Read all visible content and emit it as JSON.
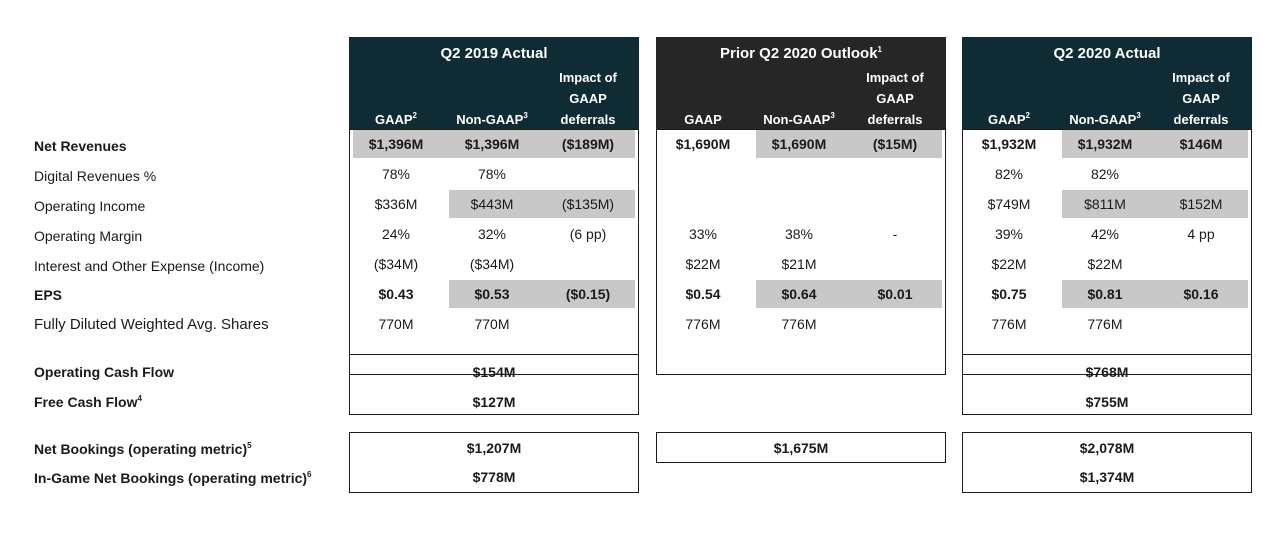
{
  "row_labels": {
    "net_revenues": "Net Revenues",
    "digital_revenues": "Digital Revenues %",
    "operating_income": "Operating Income",
    "operating_margin": "Operating Margin",
    "interest_expense": "Interest and Other Expense (Income)",
    "eps": "EPS",
    "shares": "Fully Diluted Weighted Avg. Shares",
    "operating_cash_flow": "Operating Cash Flow",
    "free_cash_flow": "Free Cash Flow",
    "free_cash_flow_note": "4",
    "net_bookings": "Net Bookings (operating metric)",
    "net_bookings_note": "5",
    "ingame_bookings": "In-Game Net Bookings (operating metric)",
    "ingame_bookings_note": "6"
  },
  "panels": [
    {
      "title": "Q2 2019 Actual",
      "title_note": "",
      "header_color": "#0f2b34",
      "cols": [
        {
          "l1": "",
          "l2": "",
          "l3": "GAAP",
          "note": "2"
        },
        {
          "l1": "",
          "l2": "",
          "l3": "Non-GAAP",
          "note": "3"
        },
        {
          "l1": "Impact of",
          "l2": "GAAP",
          "l3": "deferrals",
          "note": ""
        }
      ],
      "rows": {
        "net_revenues": [
          "$1,396M",
          "$1,396M",
          "($189M)"
        ],
        "digital_revenues": [
          "78%",
          "78%",
          ""
        ],
        "operating_income": [
          "$336M",
          "$443M",
          "($135M)"
        ],
        "operating_margin": [
          "24%",
          "32%",
          "(6 pp)"
        ],
        "interest_expense": [
          "($34M)",
          "($34M)",
          ""
        ],
        "eps": [
          "$0.43",
          "$0.53",
          "($0.15)"
        ],
        "shares": [
          "770M",
          "770M",
          ""
        ]
      },
      "cash": {
        "operating_cash_flow": "$154M",
        "free_cash_flow": "$127M"
      },
      "bookings": {
        "net_bookings": "$1,207M",
        "ingame_bookings": "$778M"
      }
    },
    {
      "title": "Prior Q2 2020 Outlook",
      "title_note": "1",
      "header_color": "#262626",
      "cols": [
        {
          "l1": "",
          "l2": "",
          "l3": "GAAP",
          "note": ""
        },
        {
          "l1": "",
          "l2": "",
          "l3": "Non-GAAP",
          "note": "3"
        },
        {
          "l1": "Impact of",
          "l2": "GAAP",
          "l3": "deferrals",
          "note": ""
        }
      ],
      "rows": {
        "net_revenues": [
          "$1,690M",
          "$1,690M",
          "($15M)"
        ],
        "digital_revenues": [
          "",
          "",
          ""
        ],
        "operating_income": [
          "",
          "",
          ""
        ],
        "operating_margin": [
          "33%",
          "38%",
          "-"
        ],
        "interest_expense": [
          "$22M",
          "$21M",
          ""
        ],
        "eps": [
          "$0.54",
          "$0.64",
          "$0.01"
        ],
        "shares": [
          "776M",
          "776M",
          ""
        ]
      },
      "cash": {
        "operating_cash_flow": "",
        "free_cash_flow": ""
      },
      "bookings": {
        "net_bookings": "$1,675M",
        "ingame_bookings": ""
      }
    },
    {
      "title": "Q2 2020 Actual",
      "title_note": "",
      "header_color": "#0f2b34",
      "cols": [
        {
          "l1": "",
          "l2": "",
          "l3": "GAAP",
          "note": "2"
        },
        {
          "l1": "",
          "l2": "",
          "l3": "Non-GAAP",
          "note": "3"
        },
        {
          "l1": "Impact of",
          "l2": "GAAP",
          "l3": "deferrals",
          "note": ""
        }
      ],
      "rows": {
        "net_revenues": [
          "$1,932M",
          "$1,932M",
          "$146M"
        ],
        "digital_revenues": [
          "82%",
          "82%",
          ""
        ],
        "operating_income": [
          "$749M",
          "$811M",
          "$152M"
        ],
        "operating_margin": [
          "39%",
          "42%",
          "4 pp"
        ],
        "interest_expense": [
          "$22M",
          "$22M",
          ""
        ],
        "eps": [
          "$0.75",
          "$0.81",
          "$0.16"
        ],
        "shares": [
          "776M",
          "776M",
          ""
        ]
      },
      "cash": {
        "operating_cash_flow": "$768M",
        "free_cash_flow": "$755M"
      },
      "bookings": {
        "net_bookings": "$2,078M",
        "ingame_bookings": "$1,374M"
      }
    }
  ],
  "colors": {
    "shade": "#c8c8c8",
    "border": "#1a1a1a"
  }
}
